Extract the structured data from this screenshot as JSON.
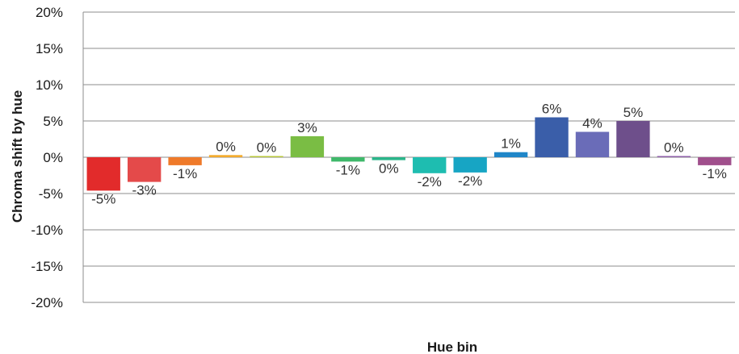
{
  "chart_data": {
    "type": "bar",
    "xlabel": "Hue bin",
    "ylabel": "Chroma shift by hue",
    "ylim": [
      -20,
      20
    ],
    "yticks": [
      -20,
      -15,
      -10,
      -5,
      0,
      5,
      10,
      15,
      20
    ],
    "ytick_labels": [
      "-20%",
      "-15%",
      "-10%",
      "-5%",
      "0%",
      "5%",
      "10%",
      "15%",
      "20%"
    ],
    "grid": true,
    "values": [
      -4.6,
      -3.4,
      -1.1,
      0.3,
      0.1,
      2.9,
      -0.6,
      -0.4,
      -2.2,
      -2.1,
      0.7,
      5.5,
      3.5,
      5.0,
      0.1,
      -1.1
    ],
    "data_labels": [
      "-5%",
      "-3%",
      "-1%",
      "0%",
      "0%",
      "3%",
      "-1%",
      "0%",
      "-2%",
      "-2%",
      "1%",
      "6%",
      "4%",
      "5%",
      "0%",
      "-1%"
    ],
    "colors": [
      "#e22b2b",
      "#e44a4a",
      "#ef7a2a",
      "#f2ab2e",
      "#b8c83c",
      "#7abd44",
      "#3fb86a",
      "#2bb58a",
      "#1ebdb0",
      "#17a5c4",
      "#1f86c8",
      "#3a5ea9",
      "#6a6cb8",
      "#6e4f8b",
      "#8d5fa8",
      "#a04f8c"
    ]
  }
}
